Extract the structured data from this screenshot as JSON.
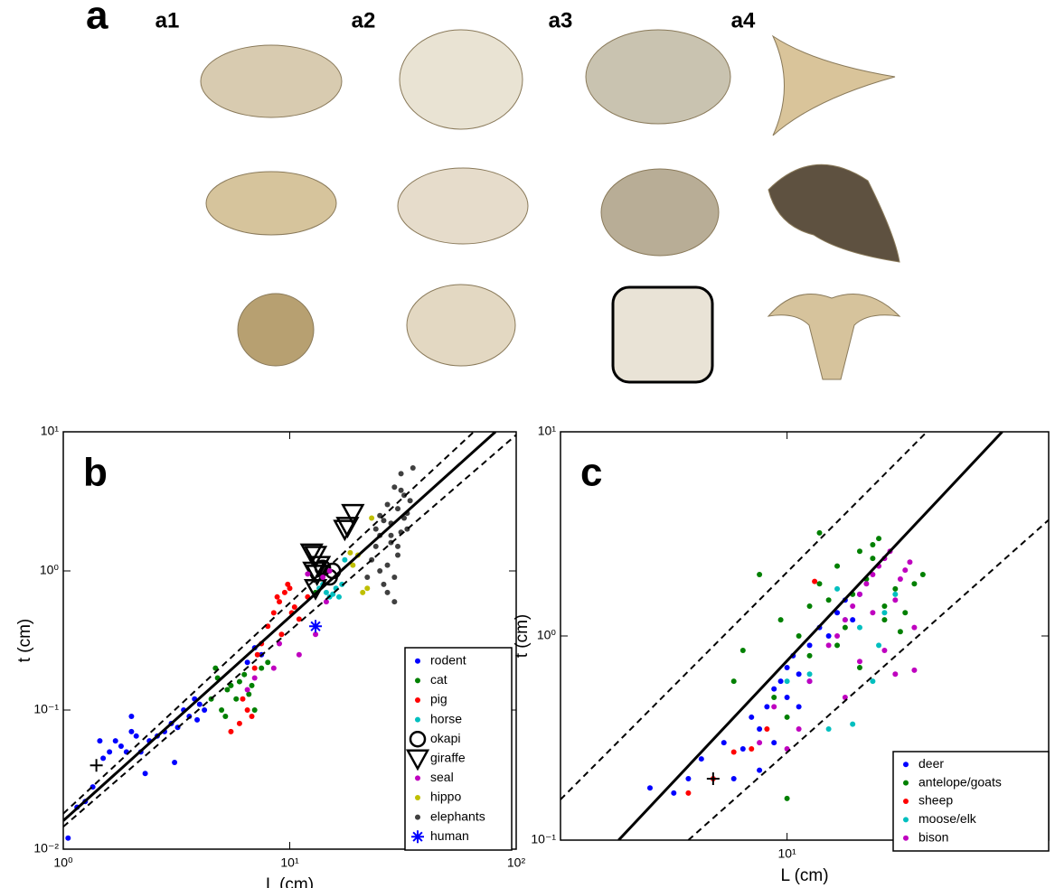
{
  "figure_a": {
    "label": "a",
    "columns": [
      "a1",
      "a2",
      "a3",
      "a4"
    ]
  },
  "chart_data": [
    {
      "type": "scatter",
      "panel_label": "b",
      "xlabel": "L (cm)",
      "ylabel": "t (cm)",
      "log_x": true,
      "log_y": true,
      "xlim": [
        1,
        100
      ],
      "ylim": [
        0.01,
        10
      ],
      "xticks": [
        {
          "value": 1,
          "label": "10⁰"
        },
        {
          "value": 10,
          "label": "10¹"
        },
        {
          "value": 100,
          "label": "10²"
        }
      ],
      "yticks": [
        {
          "value": 0.01,
          "label": "10⁻²"
        },
        {
          "value": 0.1,
          "label": "10⁻¹"
        },
        {
          "value": 1,
          "label": "10⁰"
        },
        {
          "value": 10,
          "label": "10¹"
        }
      ],
      "legend": "lower right",
      "series": [
        {
          "name": "rodent",
          "color": "#0000ff",
          "marker": "dot",
          "x": [
            1.05,
            1.15,
            1.25,
            1.35,
            1.45,
            1.6,
            1.7,
            1.8,
            1.9,
            2.0,
            2.1,
            2.2,
            2.4,
            2.6,
            2.8,
            3.0,
            3.2,
            3.4,
            3.6,
            3.8,
            4.0,
            4.2,
            1.5,
            2.3,
            3.1,
            3.9,
            6.5,
            7.0,
            7.5,
            2.0
          ],
          "y": [
            0.012,
            0.02,
            0.022,
            0.028,
            0.06,
            0.05,
            0.06,
            0.055,
            0.05,
            0.07,
            0.065,
            0.05,
            0.06,
            0.065,
            0.07,
            0.08,
            0.075,
            0.1,
            0.09,
            0.12,
            0.11,
            0.1,
            0.045,
            0.035,
            0.042,
            0.085,
            0.22,
            0.28,
            0.25,
            0.09
          ]
        },
        {
          "name": "cat",
          "color": "#008000",
          "marker": "dot",
          "x": [
            4.5,
            4.8,
            5.0,
            5.3,
            5.5,
            5.8,
            6.0,
            6.3,
            6.6,
            7.0,
            7.5,
            8.0,
            4.7,
            5.2,
            6.8,
            13,
            14
          ],
          "y": [
            0.12,
            0.17,
            0.1,
            0.14,
            0.15,
            0.12,
            0.16,
            0.18,
            0.13,
            0.1,
            0.2,
            0.22,
            0.2,
            0.09,
            0.15,
            0.7,
            0.9
          ]
        },
        {
          "name": "pig",
          "color": "#ff0000",
          "marker": "dot",
          "x": [
            5.5,
            6.0,
            6.2,
            6.5,
            7.0,
            7.5,
            8.0,
            8.5,
            9.0,
            9.5,
            10,
            10.5,
            11,
            9.2,
            9.8,
            8.8,
            10.2,
            6.8,
            7.2,
            12
          ],
          "y": [
            0.07,
            0.08,
            0.12,
            0.1,
            0.2,
            0.3,
            0.4,
            0.5,
            0.6,
            0.7,
            0.75,
            0.55,
            0.45,
            0.35,
            0.8,
            0.65,
            0.5,
            0.09,
            0.25,
            0.65
          ]
        },
        {
          "name": "horse",
          "color": "#00bfbf",
          "marker": "dot",
          "x": [
            13.5,
            14,
            14.5,
            15,
            15.5,
            16,
            16.5,
            17,
            17.5
          ],
          "y": [
            0.75,
            0.8,
            0.7,
            0.65,
            0.68,
            0.75,
            0.65,
            0.8,
            1.2
          ]
        },
        {
          "name": "okapi",
          "color": "#000000",
          "marker": "circle",
          "x": [
            14,
            15,
            15.5
          ],
          "y": [
            1.05,
            0.9,
            1.0
          ]
        },
        {
          "name": "giraffe",
          "color": "#000000",
          "marker": "triangle",
          "x": [
            12.5,
            13,
            13.5,
            12.8,
            13.2,
            17.5,
            18,
            19,
            13.0
          ],
          "y": [
            1.35,
            1.3,
            1.1,
            1.0,
            0.95,
            2.0,
            2.1,
            2.6,
            0.75
          ]
        },
        {
          "name": "seal",
          "color": "#bf00bf",
          "marker": "dot",
          "x": [
            8.5,
            9,
            11,
            13,
            14,
            15,
            12,
            7,
            6.5,
            14.5
          ],
          "y": [
            0.2,
            0.3,
            0.25,
            0.35,
            0.9,
            1.0,
            0.95,
            0.17,
            0.14,
            0.6
          ]
        },
        {
          "name": "hippo",
          "color": "#bfbf00",
          "marker": "dot",
          "x": [
            21,
            22,
            20,
            19,
            18.5,
            23
          ],
          "y": [
            0.7,
            0.75,
            1.3,
            1.1,
            1.35,
            2.4
          ]
        },
        {
          "name": "elephants",
          "color": "#404040",
          "marker": "dot",
          "x": [
            22,
            23,
            24,
            25,
            25,
            26,
            27,
            27,
            28,
            28,
            29,
            29,
            30,
            30,
            31,
            31,
            32,
            32,
            33,
            34,
            35,
            25,
            27,
            30,
            33,
            28,
            26,
            24,
            29,
            31
          ],
          "y": [
            0.9,
            1.2,
            1.5,
            1.8,
            2.5,
            0.8,
            1.1,
            3.0,
            1.6,
            2.2,
            0.6,
            4.0,
            1.3,
            2.8,
            1.9,
            5.0,
            2.4,
            3.5,
            2.0,
            3.2,
            5.5,
            1.0,
            0.7,
            1.5,
            2.6,
            1.8,
            2.3,
            2.0,
            0.9,
            3.8
          ]
        },
        {
          "name": "human",
          "color": "#0000ff",
          "marker": "asterisk",
          "x": [
            13
          ],
          "y": [
            0.4
          ]
        }
      ],
      "lines": [
        {
          "style": "solid",
          "x": [
            1,
            81
          ],
          "y": [
            0.016,
            10
          ]
        },
        {
          "style": "dashed",
          "x": [
            1,
            65
          ],
          "y": [
            0.018,
            10
          ]
        },
        {
          "style": "dashed",
          "x": [
            1,
            100
          ],
          "y": [
            0.0145,
            9.5
          ]
        }
      ],
      "crosses": [
        {
          "x": 1.4,
          "y": 0.04
        }
      ]
    },
    {
      "type": "scatter",
      "panel_label": "c",
      "xlabel": "L (cm)",
      "ylabel": "t (cm)",
      "log_x": true,
      "log_y": true,
      "xlim": [
        1.6,
        83
      ],
      "ylim": [
        0.1,
        10
      ],
      "xticks": [
        {
          "value": 10,
          "label": "10¹"
        }
      ],
      "yticks": [
        {
          "value": 0.1,
          "label": "10⁻¹"
        },
        {
          "value": 1,
          "label": "10⁰"
        },
        {
          "value": 10,
          "label": "10¹"
        }
      ],
      "legend": "lower right",
      "series": [
        {
          "name": "deer",
          "color": "#0000ff",
          "marker": "dot",
          "x": [
            3.3,
            4,
            4.5,
            5,
            6,
            6.5,
            7,
            7.5,
            8,
            8.5,
            9,
            9.5,
            10,
            10.5,
            11,
            12,
            13,
            14,
            15,
            16,
            17,
            18,
            8,
            9,
            10,
            11,
            12
          ],
          "y": [
            0.18,
            0.17,
            0.2,
            0.25,
            0.3,
            0.2,
            0.28,
            0.4,
            0.35,
            0.45,
            0.55,
            0.6,
            0.7,
            0.8,
            0.65,
            0.9,
            1.1,
            1.0,
            1.3,
            1.5,
            1.2,
            1.6,
            0.22,
            0.3,
            0.5,
            0.45,
            0.6
          ]
        },
        {
          "name": "antelope/goats",
          "color": "#008000",
          "marker": "dot",
          "x": [
            6.5,
            7,
            8,
            9,
            9.5,
            10,
            11,
            12,
            13,
            13,
            14,
            15,
            16,
            17,
            18,
            19,
            20,
            21,
            22,
            24,
            26,
            28,
            30,
            12,
            15,
            18,
            20,
            22,
            10,
            25
          ],
          "y": [
            0.6,
            0.85,
            2.0,
            0.5,
            1.2,
            0.16,
            1.0,
            1.4,
            1.8,
            3.2,
            1.5,
            2.2,
            1.1,
            1.6,
            2.6,
            1.9,
            2.4,
            3.0,
            1.4,
            1.7,
            1.3,
            1.8,
            2.0,
            0.8,
            0.9,
            0.7,
            2.8,
            1.2,
            0.4,
            1.05
          ]
        },
        {
          "name": "sheep",
          "color": "#ff0000",
          "marker": "dot",
          "x": [
            4.5,
            5.5,
            6.5,
            7.5,
            8.5,
            12.5
          ],
          "y": [
            0.17,
            0.2,
            0.27,
            0.28,
            0.35,
            1.85
          ]
        },
        {
          "name": "moose/elk",
          "color": "#00bfbf",
          "marker": "dot",
          "x": [
            10,
            12,
            14,
            15,
            16,
            18,
            20,
            22,
            24,
            17,
            21
          ],
          "y": [
            0.6,
            0.65,
            0.35,
            1.7,
            1.2,
            1.1,
            0.6,
            1.3,
            1.6,
            0.37,
            0.9
          ]
        },
        {
          "name": "bison",
          "color": "#bf00bf",
          "marker": "dot",
          "x": [
            8,
            9,
            10,
            11,
            12,
            14,
            15,
            16,
            17,
            18,
            19,
            20,
            21,
            22,
            23,
            24,
            25,
            26,
            27,
            28,
            20,
            22,
            24,
            18,
            16,
            28
          ],
          "y": [
            0.3,
            0.45,
            0.28,
            0.35,
            0.6,
            0.9,
            1.0,
            1.2,
            1.4,
            1.6,
            1.8,
            2.0,
            2.2,
            2.4,
            2.6,
            1.5,
            1.9,
            2.1,
            2.3,
            1.1,
            1.3,
            0.85,
            0.65,
            0.75,
            0.5,
            0.68
          ]
        }
      ],
      "lines": [
        {
          "style": "solid",
          "x": [
            2.56,
            57
          ],
          "y": [
            0.1,
            10
          ]
        },
        {
          "style": "dashed",
          "x": [
            1.6,
            31
          ],
          "y": [
            0.158,
            10
          ]
        },
        {
          "style": "dashed",
          "x": [
            4.5,
            83
          ],
          "y": [
            0.1,
            3.7
          ]
        }
      ],
      "crosses": [
        {
          "x": 5.5,
          "y": 0.2
        }
      ]
    }
  ]
}
